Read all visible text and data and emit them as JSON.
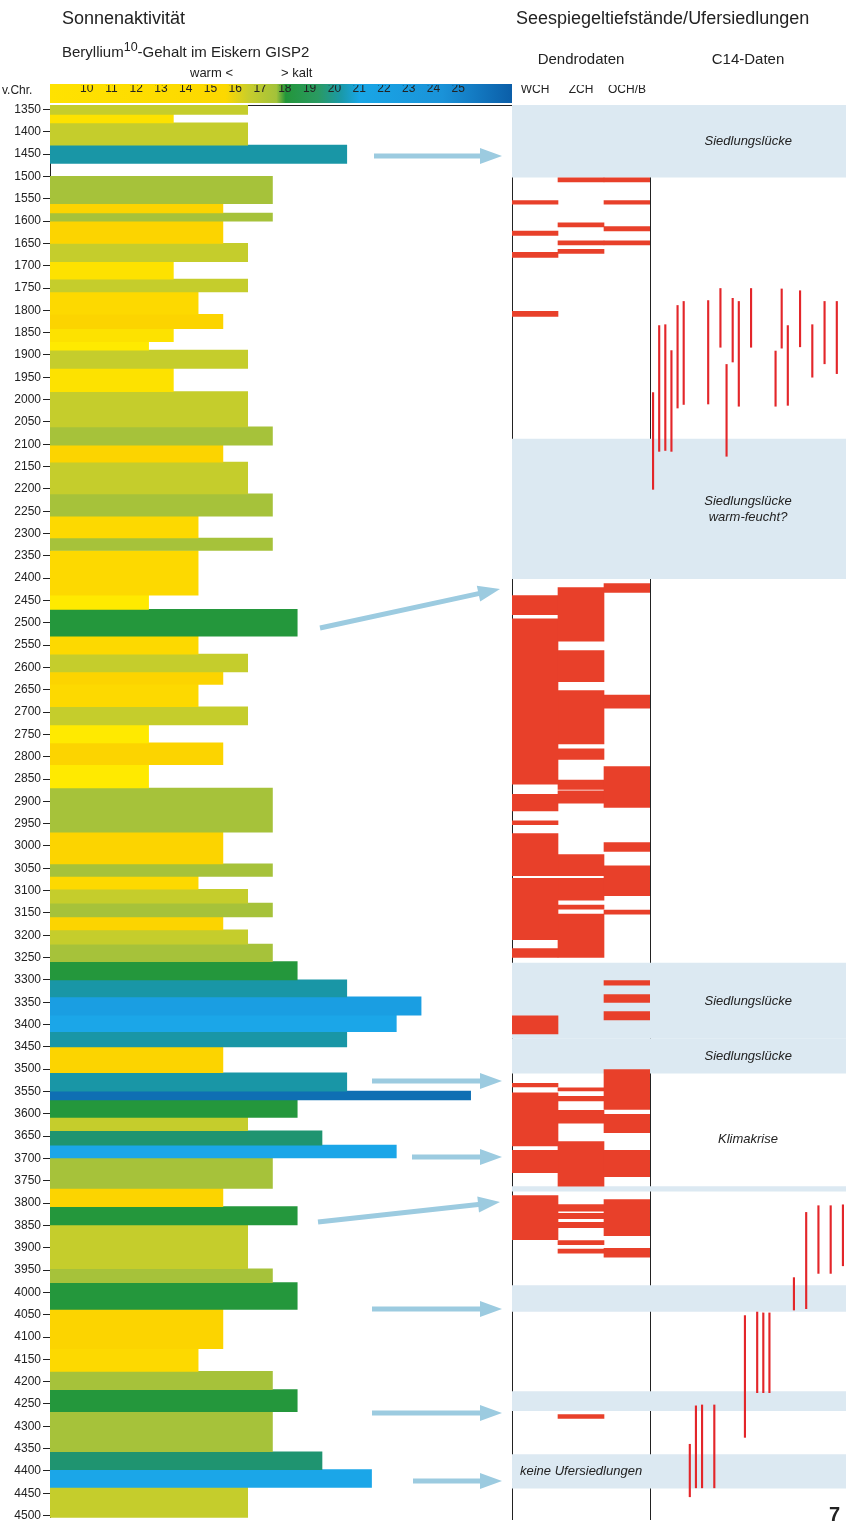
{
  "chart_data": [
    {
      "type": "histogram",
      "title": "Sonnenaktivität",
      "subtitle": "Beryllium$^{10}$-Gehalt im Eiskern GISP2",
      "ylabel": "v.Chr.",
      "annotations": [
        "warm <",
        "> kalt"
      ],
      "orientation": "horizontal",
      "bins": [
        1340,
        1361,
        1380,
        1430,
        1471,
        1500,
        1561,
        1582,
        1600,
        1650,
        1691,
        1730,
        1759,
        1809,
        1841,
        1870,
        1889,
        1930,
        1982,
        2061,
        2102,
        2140,
        2211,
        2261,
        2310,
        2338,
        2438,
        2470,
        2530,
        2570,
        2610,
        2638,
        2688,
        2729,
        2769,
        2818,
        2870,
        2969,
        3040,
        3068,
        3097,
        3128,
        3159,
        3188,
        3220,
        3259,
        3300,
        3338,
        3379,
        3416,
        3450,
        3508,
        3549,
        3569,
        3608,
        3638,
        3670,
        3699,
        3767,
        3808,
        3849,
        3947,
        3978,
        4038,
        4126,
        4177,
        4218,
        4267,
        4357,
        4397,
        4437,
        4505
      ],
      "values": [
        16.5,
        13.5,
        16.5,
        20.5,
        null,
        17.5,
        15.5,
        17.5,
        15.5,
        16.5,
        13.5,
        16.5,
        14.5,
        15.5,
        13.5,
        12.5,
        16.5,
        13.5,
        16.5,
        17.5,
        15.5,
        16.5,
        17.5,
        14.5,
        17.5,
        14.5,
        12.5,
        18.5,
        14.5,
        16.5,
        15.5,
        14.5,
        16.5,
        12.5,
        15.5,
        12.5,
        17.5,
        15.5,
        17.5,
        14.5,
        16.5,
        17.5,
        15.5,
        16.5,
        17.5,
        18.5,
        20.5,
        23.5,
        22.5,
        20.5,
        15.5,
        20.5,
        25.5,
        18.5,
        16.5,
        19.5,
        22.5,
        17.5,
        15.5,
        18.5,
        16.5,
        17.5,
        18.5,
        15.5,
        14.5,
        17.5,
        18.5,
        17.5,
        19.5,
        21.5,
        16.5
      ],
      "colors": [
        "#c5cd2c",
        "#fde200",
        "#c5cd2c",
        "#1996a6",
        null,
        "#a6c23a",
        "#fcd400",
        "#a6c23a",
        "#fcd400",
        "#c5cd2c",
        "#fde200",
        "#c5cd2c",
        "#fdd900",
        "#fcd400",
        "#fde200",
        "#ffea00",
        "#c5cd2c",
        "#fde200",
        "#c5cd2c",
        "#a6c23a",
        "#fcd400",
        "#c5cd2c",
        "#a6c23a",
        "#fdd900",
        "#a6c23a",
        "#fdd900",
        "#ffea00",
        "#24973c",
        "#fdd900",
        "#c5cd2c",
        "#fcd400",
        "#fdd900",
        "#c5cd2c",
        "#ffea00",
        "#fcd400",
        "#ffea00",
        "#a6c23a",
        "#fcd400",
        "#a6c23a",
        "#fdd900",
        "#c5cd2c",
        "#a6c23a",
        "#fcd400",
        "#c5cd2c",
        "#a6c23a",
        "#24973c",
        "#1996a6",
        "#1a9ee2",
        "#1ba6e8",
        "#1996a6",
        "#fcd400",
        "#1996a6",
        "#0f6fb3",
        "#24973c",
        "#c5cd2c",
        "#1f9470",
        "#1ba6e8",
        "#a6c23a",
        "#fcd400",
        "#24973c",
        "#c5cd2c",
        "#a6c23a",
        "#24973c",
        "#fcd400",
        "#fdd900",
        "#a6c23a",
        "#24973c",
        "#a6c23a",
        "#1f9470",
        "#1ba6e8",
        "#c5cd2c"
      ],
      "xlim": [
        8.52,
        27.17
      ],
      "xticks": [
        10,
        11,
        12,
        13,
        14,
        15,
        16,
        17,
        18,
        19,
        20,
        21,
        22,
        23,
        24,
        25
      ],
      "ylim": [
        4505,
        1340
      ],
      "yticks": [
        1350,
        1400,
        1450,
        1500,
        1550,
        1600,
        1650,
        1700,
        1750,
        1800,
        1850,
        1900,
        1950,
        2000,
        2050,
        2100,
        2150,
        2200,
        2250,
        2300,
        2350,
        2400,
        2450,
        2500,
        2550,
        2600,
        2650,
        2700,
        2750,
        2800,
        2850,
        2900,
        2950,
        3000,
        3050,
        3100,
        3150,
        3200,
        3250,
        3300,
        3350,
        3400,
        3450,
        3500,
        3550,
        3600,
        3650,
        3700,
        3750,
        3800,
        3850,
        3900,
        3950,
        4000,
        4050,
        4100,
        4150,
        4200,
        4250,
        4300,
        4350,
        4400,
        4450,
        4500
      ]
    },
    {
      "type": "bar",
      "title": "Seespiegeltiefstände/Ufersiedlungen",
      "subtitle": "Dendrodaten",
      "categories": [
        "WCH",
        "ZCH",
        "OCH/B"
      ],
      "ylim": [
        4505,
        1340
      ],
      "tick_labels": "x",
      "yticks": [
        1350,
        1400,
        1450,
        1500,
        1550,
        1600,
        1650,
        1700,
        1750,
        1800,
        1850,
        1900,
        1950,
        2000,
        2050,
        2100,
        2150,
        2200,
        2250,
        2300,
        2350,
        2400,
        2450,
        2500,
        2550,
        2600,
        2650,
        2700,
        2750,
        2800,
        2850,
        2900,
        2950,
        3000,
        3050,
        3100,
        3150,
        3200,
        3250,
        3300,
        3350,
        3400,
        3450,
        3500,
        3550,
        3600,
        3650,
        3700,
        3750,
        3800,
        3850,
        3900,
        3950,
        4000,
        4050,
        4100,
        4150,
        4200,
        4250,
        4300,
        4350,
        4400,
        4450,
        4500
      ],
      "series": [
        {
          "color": "#e8402a",
          "base": [
            1554,
            1503,
            1503
          ],
          "values": [
            8,
            9,
            9
          ]
        },
        {
          "color": "#e8402a",
          "base": [
            1622,
            1604,
            1554
          ],
          "values": [
            10,
            9,
            8
          ]
        },
        {
          "color": "#e8402a",
          "base": [
            1670,
            1644,
            1612
          ],
          "values": [
            11,
            9,
            10
          ]
        },
        {
          "color": "#e8402a",
          "base": [
            1802,
            1663,
            1644
          ],
          "values": [
            11,
            9,
            9
          ]
        },
        {
          "color": "#e8402a",
          "base": [
            2438,
            2420,
            2411
          ],
          "values": [
            43,
            120,
            20
          ]
        },
        {
          "color": "#e8402a",
          "base": [
            2490,
            2561,
            2661
          ],
          "values": [
            370,
            70,
            29
          ]
        },
        {
          "color": "#e8402a",
          "base": [
            2883,
            2651,
            2821
          ],
          "values": [
            37,
            119,
            91
          ]
        },
        {
          "color": "#e8402a",
          "base": [
            2942,
            2781,
            2991
          ],
          "values": [
            9,
            24,
            20
          ]
        },
        {
          "color": "#e8402a",
          "base": [
            2971,
            2851,
            3043
          ],
          "values": [
            94,
            21,
            67
          ]
        },
        {
          "color": "#e8402a",
          "base": [
            3071,
            2875,
            3142
          ],
          "values": [
            137,
            28,
            9
          ]
        },
        {
          "color": "#e8402a",
          "base": [
            3228,
            3018,
            3300
          ],
          "values": [
            20,
            47,
            10
          ]
        },
        {
          "color": "#e8402a",
          "base": [
            3379,
            3071,
            3331
          ],
          "values": [
            40,
            49,
            18
          ]
        },
        {
          "color": "#e8402a",
          "base": [
            3530,
            3131,
            3369
          ],
          "values": [
            8,
            9,
            19
          ]
        },
        {
          "color": "#e8402a",
          "base": [
            3551,
            3151,
            3499
          ],
          "values": [
            119,
            97,
            89
          ]
        },
        {
          "color": "#e8402a",
          "base": [
            3680,
            3540,
            3599
          ],
          "values": [
            50,
            7,
            41
          ]
        },
        {
          "color": "#e8402a",
          "base": [
            3781,
            3559,
            3680
          ],
          "values": [
            99,
            10,
            59
          ]
        },
        {
          "color": "#e8402a",
          "base": [
            null,
            3590,
            3790
          ],
          "values": [
            null,
            29,
            81
          ]
        },
        {
          "color": "#e8402a",
          "base": [
            null,
            3660,
            3899
          ],
          "values": [
            null,
            100,
            20
          ]
        },
        {
          "color": "#e8402a",
          "base": [
            null,
            3801,
            null
          ],
          "values": [
            null,
            15,
            null
          ]
        },
        {
          "color": "#e8402a",
          "base": [
            null,
            3821,
            null
          ],
          "values": [
            null,
            12,
            null
          ]
        },
        {
          "color": "#e8402a",
          "base": [
            null,
            3841,
            null
          ],
          "values": [
            null,
            12,
            null
          ]
        },
        {
          "color": "#e8402a",
          "base": [
            null,
            3882,
            null
          ],
          "values": [
            null,
            9,
            null
          ]
        },
        {
          "color": "#e8402a",
          "base": [
            null,
            3901,
            null
          ],
          "values": [
            null,
            9,
            null
          ]
        },
        {
          "color": "#e8402a",
          "base": [
            null,
            4271,
            null
          ],
          "values": [
            null,
            9,
            null
          ]
        }
      ],
      "bands": [
        {
          "axis": "y",
          "from": 1340,
          "to": 1502,
          "color": "#dce9f2"
        },
        {
          "axis": "y",
          "from": 2087,
          "to": 2401,
          "color": "#dce9f2"
        },
        {
          "axis": "y",
          "from": 3260,
          "to": 3430,
          "color": "#dce9f2"
        },
        {
          "axis": "y",
          "from": 3430,
          "to": 3508,
          "color": "#dce9f2"
        },
        {
          "axis": "y",
          "from": 3760,
          "to": 3772,
          "color": "#dce9f2"
        },
        {
          "axis": "y",
          "from": 3982,
          "to": 4041,
          "color": "#dce9f2"
        },
        {
          "axis": "y",
          "from": 4219,
          "to": 4263,
          "color": "#dce9f2"
        },
        {
          "axis": "y",
          "from": 4360,
          "to": 4437,
          "color": "#dce9f2",
          "label": "keine Ufersiedlungen"
        }
      ]
    },
    {
      "type": "bar",
      "title": "C14-Daten",
      "categories": [
        null,
        null,
        null,
        null,
        null,
        null,
        null,
        null,
        null,
        null,
        null,
        null,
        null,
        null,
        null,
        null,
        null,
        null,
        null,
        null,
        null,
        null,
        null,
        null,
        null,
        null,
        null,
        null,
        null,
        null,
        null,
        null
      ],
      "ylim": [
        4505,
        1340
      ],
      "tick_labels": false,
      "yticks": [
        1350,
        1400,
        1450,
        1500,
        1550,
        1600,
        1650,
        1700,
        1750,
        1800,
        1850,
        1900,
        1950,
        2000,
        2050,
        2100,
        2150,
        2200,
        2250,
        2300,
        2350,
        2400,
        2450,
        2500,
        2550,
        2600,
        2650,
        2700,
        2750,
        2800,
        2850,
        2900,
        2950,
        3000,
        3050,
        3100,
        3150,
        3200,
        3250,
        3300,
        3350,
        3400,
        3450,
        3500,
        3550,
        3600,
        3650,
        3700,
        3750,
        3800,
        3850,
        3900,
        3950,
        4000,
        4050,
        4100,
        4150,
        4200,
        4250,
        4300,
        4350,
        4400,
        4450,
        4500
      ],
      "series": [
        {
          "color": "#e3262a",
          "base": [
            1983,
            1833,
            1831,
            1889,
            1788,
            1779,
            4337,
            4251,
            4249,
            1777,
            4249,
            1750,
            1920,
            1772,
            1779,
            4049,
            1750,
            4041,
            4043,
            4043,
            1890,
            1751,
            1833,
            3964,
            1755,
            3818,
            1831,
            3803,
            1779,
            3803,
            1779,
            3801
          ],
          "values": [
            218,
            283,
            283,
            227,
            231,
            232,
            119,
            185,
            187,
            233,
            187,
            133,
            207,
            144,
            236,
            274,
            133,
            182,
            180,
            180,
            125,
            134,
            180,
            74,
            127,
            217,
            119,
            153,
            141,
            153,
            163,
            138
          ]
        }
      ],
      "bands": [
        {
          "axis": "y",
          "from": 1340,
          "to": 1502,
          "color": "#dce9f2",
          "label": "Siedlungslücke"
        },
        {
          "axis": "y",
          "from": 2087,
          "to": 2401,
          "color": "#dce9f2",
          "label": "Siedlungslücke warm-feucht?"
        },
        {
          "axis": "y",
          "from": 3260,
          "to": 3430,
          "color": "#dce9f2",
          "label": "Siedlungslücke"
        },
        {
          "axis": "y",
          "from": 3430,
          "to": 3508,
          "color": "#dce9f2",
          "label": "Siedlungslücke"
        },
        {
          "axis": "y",
          "from": 3760,
          "to": 3772,
          "color": "#dce9f2"
        },
        {
          "axis": "y",
          "from": 3982,
          "to": 4041,
          "color": "#dce9f2"
        },
        {
          "axis": "y",
          "from": 4219,
          "to": 4263,
          "color": "#dce9f2"
        },
        {
          "axis": "y",
          "from": 4360,
          "to": 4437,
          "color": "#dce9f2"
        }
      ],
      "annotations": [
        "Klimakrise",
        "7"
      ]
    }
  ]
}
